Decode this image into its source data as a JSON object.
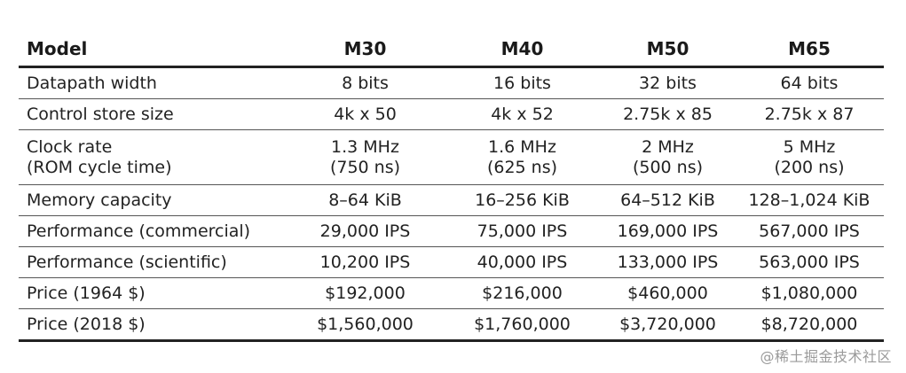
{
  "table": {
    "columns": [
      "Model",
      "M30",
      "M40",
      "M50",
      "M65"
    ],
    "rows": [
      {
        "label": "Datapath width",
        "values": [
          "8 bits",
          "16 bits",
          "32 bits",
          "64 bits"
        ]
      },
      {
        "label": "Control store size",
        "values": [
          "4k x 50",
          "4k x 52",
          "2.75k x 85",
          "2.75k x 87"
        ]
      },
      {
        "label": "Clock rate",
        "sublabel": "(ROM cycle time)",
        "values": [
          "1.3 MHz",
          "1.6 MHz",
          "2 MHz",
          "5 MHz"
        ],
        "subvalues": [
          "(750 ns)",
          "(625 ns)",
          "(500 ns)",
          "(200 ns)"
        ]
      },
      {
        "label": "Memory capacity",
        "values": [
          "8–64 KiB",
          "16–256 KiB",
          "64–512 KiB",
          "128–1,024 KiB"
        ]
      },
      {
        "label": "Performance (commercial)",
        "values": [
          "29,000 IPS",
          "75,000 IPS",
          "169,000 IPS",
          "567,000 IPS"
        ]
      },
      {
        "label": "Performance (scientific)",
        "values": [
          "10,200 IPS",
          "40,000 IPS",
          "133,000 IPS",
          "563,000 IPS"
        ]
      },
      {
        "label": "Price (1964 $)",
        "values": [
          "$192,000",
          "$216,000",
          "$460,000",
          "$1,080,000"
        ]
      },
      {
        "label": "Price (2018 $)",
        "values": [
          "$1,560,000",
          "$1,760,000",
          "$3,720,000",
          "$8,720,000"
        ]
      }
    ]
  },
  "watermark": "@稀土掘金技术社区"
}
